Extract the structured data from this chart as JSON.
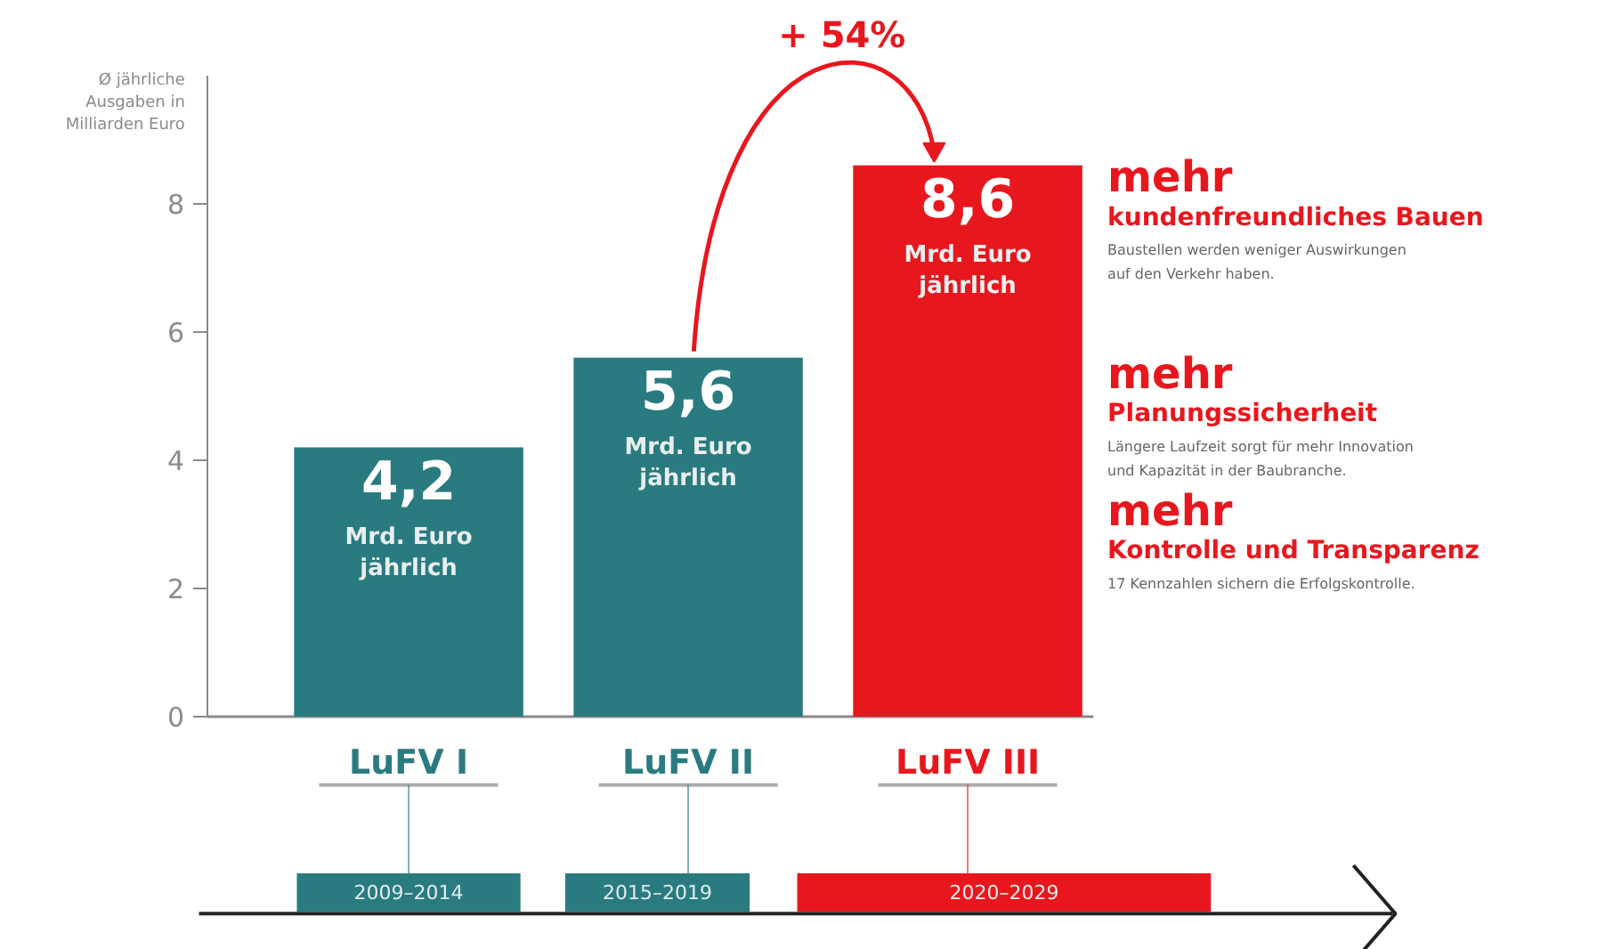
{
  "chart_data": {
    "type": "bar",
    "ylabel": "Ø jährliche\nAusgaben in\nMilliarden Euro",
    "categories": [
      "LuFV I",
      "LuFV II",
      "LuFV III"
    ],
    "values": [
      4.2,
      5.6,
      8.6
    ],
    "colors": [
      "#2a7b80",
      "#2a7b80",
      "#e8171d"
    ],
    "value_labels": [
      "4,2\nMrd. Euro\njährlich",
      "5,6\nMrd. Euro\njährlich",
      "8,6\nMrd. Euro\njährlich"
    ],
    "ylim": [
      0,
      10
    ],
    "yticks": [
      0,
      2,
      4,
      6,
      8
    ],
    "grid": false,
    "annotations": [
      "+ 54%",
      "2009–2014",
      "2015–2019",
      "2020–2029",
      "mehr",
      "kundenfreundliches Bauen",
      "Baustellen werden weniger Auswirkungen\nauf den Verkehr haben.",
      "mehr",
      "Planungssicherheit",
      "Längere Laufzeit sorgt für mehr Innovation\nund Kapazität in der Baubranche.",
      "mehr",
      "Kontrolle und Transparenz",
      "17 Kennzahlen sichern die Erfolgskontrolle."
    ]
  }
}
